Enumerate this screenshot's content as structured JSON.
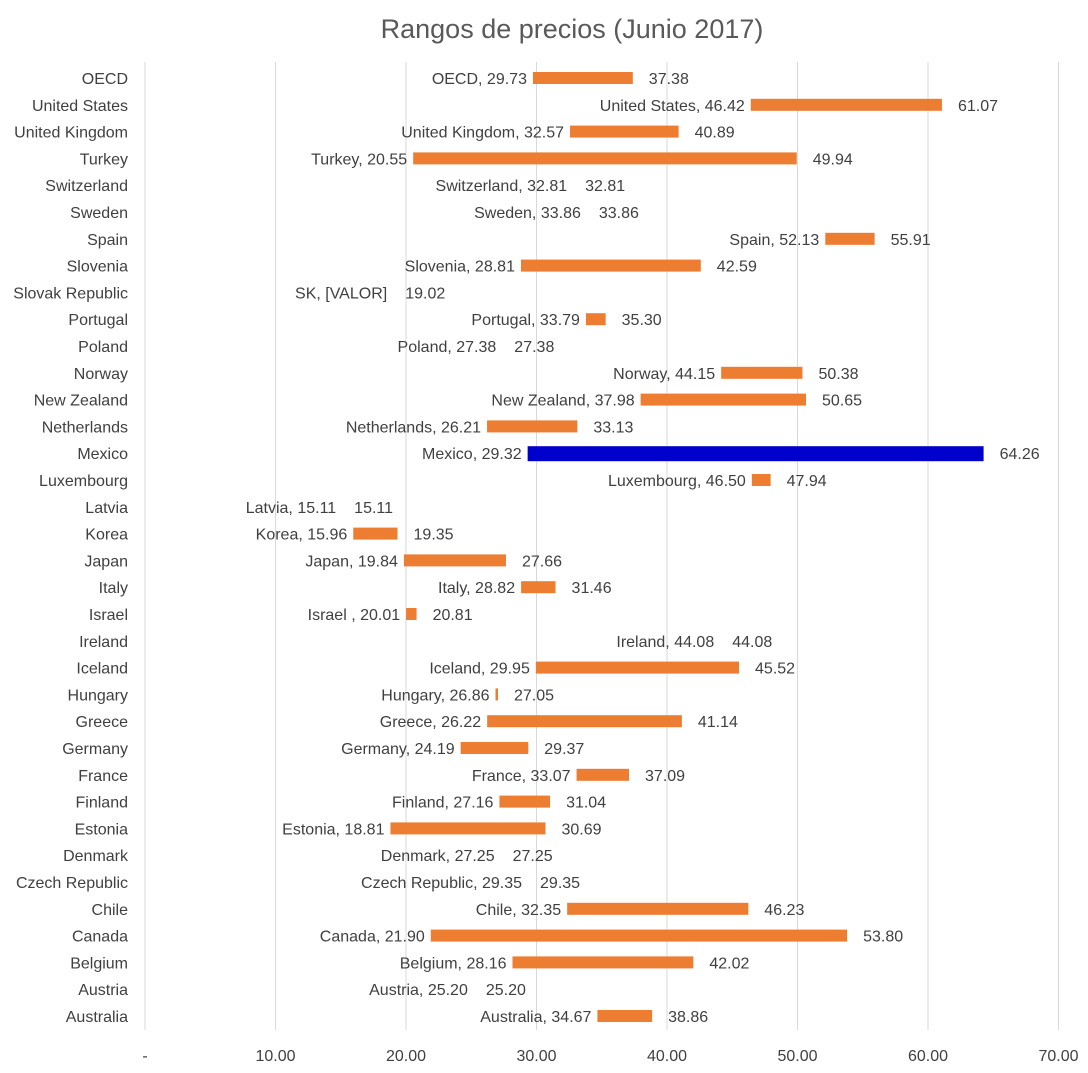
{
  "chart_data": {
    "type": "bar",
    "title": "Rangos de precios (Junio 2017)",
    "xlim": [
      0,
      70
    ],
    "x_ticks": [
      "-",
      "10.00",
      "20.00",
      "30.00",
      "40.00",
      "50.00",
      "60.00",
      "70.00"
    ],
    "grid": true,
    "legend": "none",
    "bar_color": "#ED7D31",
    "highlight_color": "#0000CC",
    "series": [
      {
        "category": "OECD",
        "min": 29.73,
        "max": 37.38,
        "min_label": "OECD,  29.73",
        "max_label": "37.38"
      },
      {
        "category": "United States",
        "min": 46.42,
        "max": 61.07,
        "min_label": "United States,  46.42",
        "max_label": "61.07"
      },
      {
        "category": "United Kingdom",
        "min": 32.57,
        "max": 40.89,
        "min_label": "United Kingdom,  32.57",
        "max_label": "40.89"
      },
      {
        "category": "Turkey",
        "min": 20.55,
        "max": 49.94,
        "min_label": "Turkey,  20.55",
        "max_label": "49.94"
      },
      {
        "category": "Switzerland",
        "min": 32.81,
        "max": 32.81,
        "min_label": "Switzerland,  32.81",
        "max_label": "32.81"
      },
      {
        "category": "Sweden",
        "min": 33.86,
        "max": 33.86,
        "min_label": "Sweden,  33.86",
        "max_label": "33.86"
      },
      {
        "category": "Spain",
        "min": 52.13,
        "max": 55.91,
        "min_label": "Spain,  52.13",
        "max_label": "55.91"
      },
      {
        "category": "Slovenia",
        "min": 28.81,
        "max": 42.59,
        "min_label": "Slovenia,  28.81",
        "max_label": "42.59"
      },
      {
        "category": "Slovak Republic",
        "min": 19.02,
        "max": 19.02,
        "min_label": "SK, [VALOR]",
        "max_label": "19.02"
      },
      {
        "category": "Portugal",
        "min": 33.79,
        "max": 35.3,
        "min_label": "Portugal,  33.79",
        "max_label": "35.30"
      },
      {
        "category": "Poland",
        "min": 27.38,
        "max": 27.38,
        "min_label": "Poland,  27.38",
        "max_label": "27.38"
      },
      {
        "category": "Norway",
        "min": 44.15,
        "max": 50.38,
        "min_label": "Norway,  44.15",
        "max_label": "50.38"
      },
      {
        "category": "New Zealand",
        "min": 37.98,
        "max": 50.65,
        "min_label": "New Zealand,  37.98",
        "max_label": "50.65"
      },
      {
        "category": "Netherlands",
        "min": 26.21,
        "max": 33.13,
        "min_label": "Netherlands,  26.21",
        "max_label": "33.13"
      },
      {
        "category": "Mexico",
        "min": 29.32,
        "max": 64.26,
        "min_label": "Mexico,  29.32",
        "max_label": "64.26",
        "highlight": true
      },
      {
        "category": "Luxembourg",
        "min": 46.5,
        "max": 47.94,
        "min_label": "Luxembourg,  46.50",
        "max_label": "47.94"
      },
      {
        "category": "Latvia",
        "min": 15.11,
        "max": 15.11,
        "min_label": "Latvia,  15.11",
        "max_label": "15.11"
      },
      {
        "category": "Korea",
        "min": 15.96,
        "max": 19.35,
        "min_label": "Korea,  15.96",
        "max_label": "19.35"
      },
      {
        "category": "Japan",
        "min": 19.84,
        "max": 27.66,
        "min_label": "Japan,  19.84",
        "max_label": "27.66"
      },
      {
        "category": "Italy",
        "min": 28.82,
        "max": 31.46,
        "min_label": "Italy,  28.82",
        "max_label": "31.46"
      },
      {
        "category": "Israel",
        "min": 20.01,
        "max": 20.81,
        "min_label": "Israel ,  20.01",
        "max_label": "20.81"
      },
      {
        "category": "Ireland",
        "min": 44.08,
        "max": 44.08,
        "min_label": "Ireland,  44.08",
        "max_label": "44.08"
      },
      {
        "category": "Iceland",
        "min": 29.95,
        "max": 45.52,
        "min_label": "Iceland,  29.95",
        "max_label": "45.52"
      },
      {
        "category": "Hungary",
        "min": 26.86,
        "max": 27.05,
        "min_label": "Hungary,  26.86",
        "max_label": "27.05"
      },
      {
        "category": "Greece",
        "min": 26.22,
        "max": 41.14,
        "min_label": "Greece,  26.22",
        "max_label": "41.14"
      },
      {
        "category": "Germany",
        "min": 24.19,
        "max": 29.37,
        "min_label": "Germany,  24.19",
        "max_label": "29.37"
      },
      {
        "category": "France",
        "min": 33.07,
        "max": 37.09,
        "min_label": "France,  33.07",
        "max_label": "37.09"
      },
      {
        "category": "Finland",
        "min": 27.16,
        "max": 31.04,
        "min_label": "Finland,  27.16",
        "max_label": "31.04"
      },
      {
        "category": "Estonia",
        "min": 18.81,
        "max": 30.69,
        "min_label": "Estonia,  18.81",
        "max_label": "30.69"
      },
      {
        "category": "Denmark",
        "min": 27.25,
        "max": 27.25,
        "min_label": "Denmark,  27.25",
        "max_label": "27.25"
      },
      {
        "category": "Czech Republic",
        "min": 29.35,
        "max": 29.35,
        "min_label": "Czech Republic,  29.35",
        "max_label": "29.35"
      },
      {
        "category": "Chile",
        "min": 32.35,
        "max": 46.23,
        "min_label": "Chile,  32.35",
        "max_label": "46.23"
      },
      {
        "category": "Canada",
        "min": 21.9,
        "max": 53.8,
        "min_label": "Canada,  21.90",
        "max_label": "53.80"
      },
      {
        "category": "Belgium",
        "min": 28.16,
        "max": 42.02,
        "min_label": "Belgium,  28.16",
        "max_label": "42.02"
      },
      {
        "category": "Austria",
        "min": 25.2,
        "max": 25.2,
        "min_label": "Austria,  25.20",
        "max_label": "25.20"
      },
      {
        "category": "Australia",
        "min": 34.67,
        "max": 38.86,
        "min_label": "Australia,  34.67",
        "max_label": "38.86"
      }
    ]
  }
}
